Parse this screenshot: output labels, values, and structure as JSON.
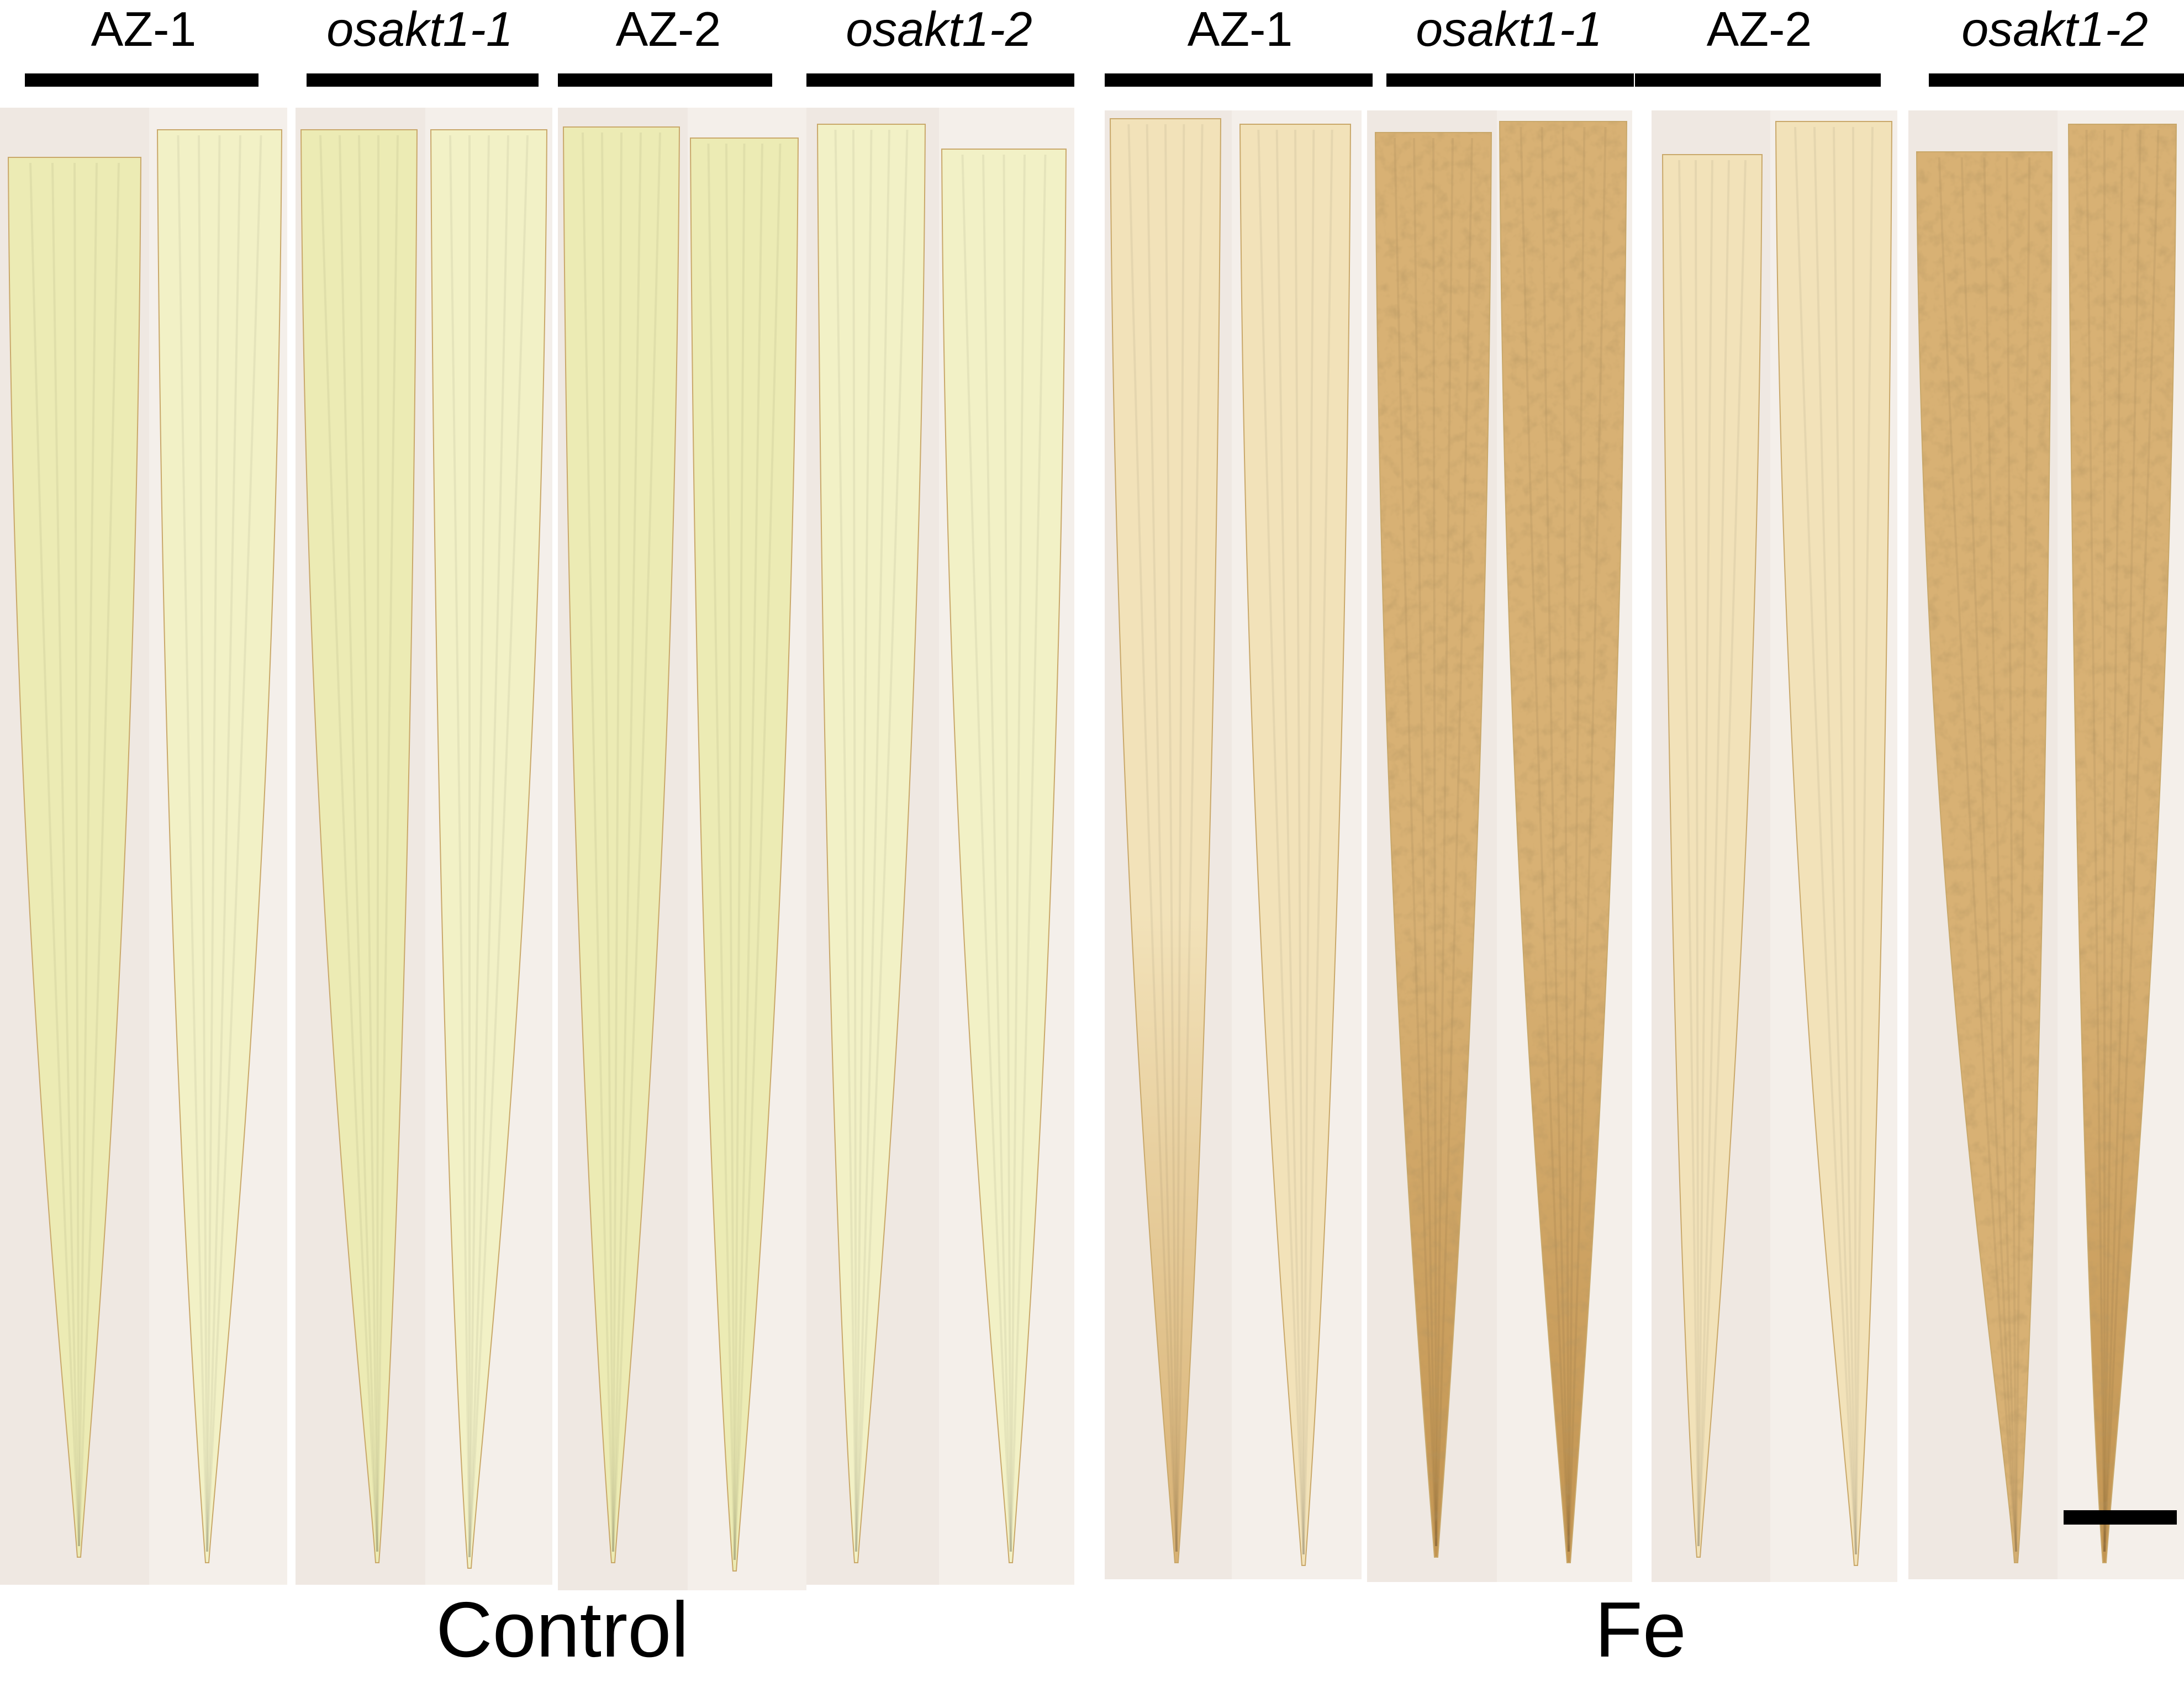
{
  "figure": {
    "panels": [
      {
        "condition": "Control",
        "groups": [
          {
            "label": "AZ-1",
            "italic": false
          },
          {
            "label": "osakt1-1",
            "italic": true
          },
          {
            "label": "AZ-2",
            "italic": false
          },
          {
            "label": "osakt1-2",
            "italic": true
          }
        ]
      },
      {
        "condition": "Fe",
        "groups": [
          {
            "label": "AZ-1",
            "italic": false
          },
          {
            "label": "osakt1-1",
            "italic": true
          },
          {
            "label": "AZ-2",
            "italic": false
          },
          {
            "label": "osakt1-2",
            "italic": true
          }
        ]
      }
    ],
    "leaf_colors": {
      "control_leaf": "#ecebb4",
      "control_leaf_light": "#f2f1c6",
      "fe_light_leaf": "#f2e2b9",
      "fe_stained_leaf": "#d8b174",
      "fe_heavy_stain": "#c39552",
      "background_strip": "#efe9e2",
      "label_bar": "#000000"
    },
    "scale_bar_shown": true
  }
}
